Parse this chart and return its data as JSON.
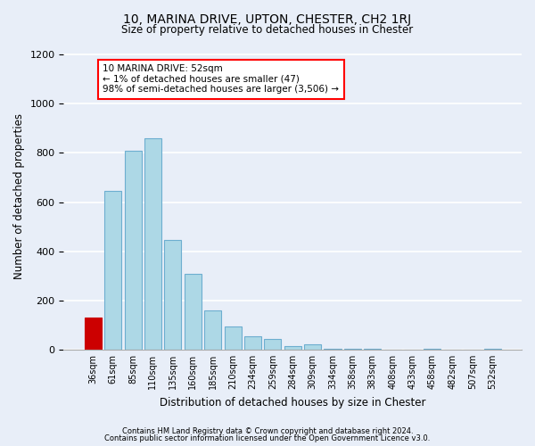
{
  "title": "10, MARINA DRIVE, UPTON, CHESTER, CH2 1RJ",
  "subtitle": "Size of property relative to detached houses in Chester",
  "xlabel": "Distribution of detached houses by size in Chester",
  "ylabel": "Number of detached properties",
  "bar_color": "#add8e6",
  "bar_edge_color": "#6daed0",
  "highlight_bar_color": "#cc0000",
  "highlight_bar_edge_color": "#cc0000",
  "categories": [
    "36sqm",
    "61sqm",
    "85sqm",
    "110sqm",
    "135sqm",
    "160sqm",
    "185sqm",
    "210sqm",
    "234sqm",
    "259sqm",
    "284sqm",
    "309sqm",
    "334sqm",
    "358sqm",
    "383sqm",
    "408sqm",
    "433sqm",
    "458sqm",
    "482sqm",
    "507sqm",
    "532sqm"
  ],
  "values": [
    130,
    645,
    810,
    860,
    445,
    310,
    160,
    95,
    55,
    45,
    15,
    20,
    5,
    5,
    2,
    0,
    0,
    5,
    0,
    0,
    5
  ],
  "highlight_index": 0,
  "annotation_text": "10 MARINA DRIVE: 52sqm\n← 1% of detached houses are smaller (47)\n98% of semi-detached houses are larger (3,506) →",
  "ylim": [
    0,
    1250
  ],
  "yticks": [
    0,
    200,
    400,
    600,
    800,
    1000,
    1200
  ],
  "footer1": "Contains HM Land Registry data © Crown copyright and database right 2024.",
  "footer2": "Contains public sector information licensed under the Open Government Licence v3.0.",
  "background_color": "#e8eef8",
  "plot_bg_color": "#e8eef8"
}
